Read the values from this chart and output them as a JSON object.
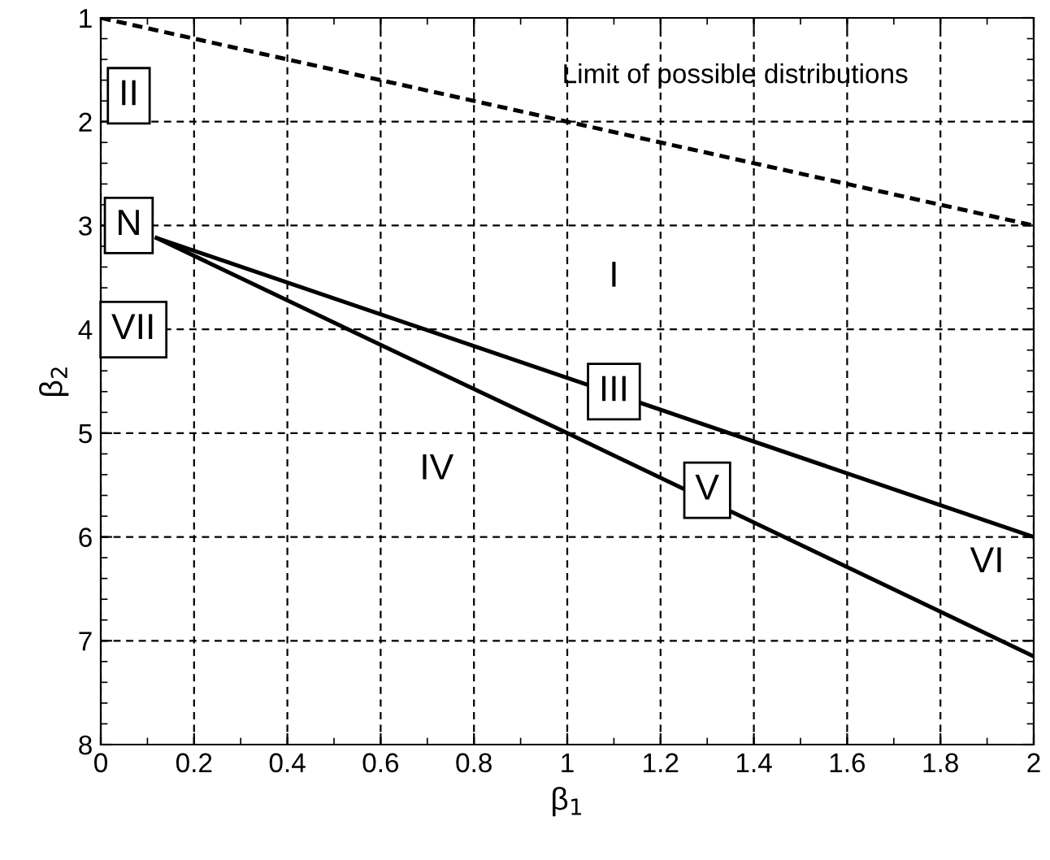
{
  "chart_data": {
    "type": "line",
    "xlabel": "β$_{1}$",
    "ylabel": "β$_{2}$",
    "xlim": [
      0,
      2
    ],
    "xticks": [
      0,
      0.2,
      0.4,
      0.6,
      0.8,
      1,
      1.2,
      1.4,
      1.6,
      1.8,
      2
    ],
    "ylim": [
      8,
      1
    ],
    "yticks": [
      1,
      2,
      3,
      4,
      5,
      6,
      7,
      8
    ],
    "grid": true,
    "legend": false,
    "series": [
      {
        "color": "#000000",
        "line_style": "dotted",
        "x": [
          0,
          2
        ],
        "values": [
          1,
          3
        ]
      },
      {
        "color": "#000000",
        "line_style": "solid",
        "x": [
          0.12,
          2
        ],
        "values": [
          3.12,
          6
        ]
      },
      {
        "color": "#000000",
        "line_style": "solid",
        "x": [
          0.12,
          0.6,
          1,
          2
        ],
        "values": [
          3.12,
          4.15,
          5.0,
          7.15
        ]
      }
    ],
    "annotations": [
      "Limit of possible distributions",
      {
        "text": "II",
        "x": 0.06,
        "y": 1.75
      },
      {
        "text": "N",
        "x": 0.06,
        "y": 3.0
      },
      "VII",
      "I",
      {
        "text": "III",
        "x": 1.1,
        "y": 4.6
      },
      "IV",
      {
        "text": "V",
        "x": 1.3,
        "y": 5.55
      },
      "VI"
    ]
  }
}
